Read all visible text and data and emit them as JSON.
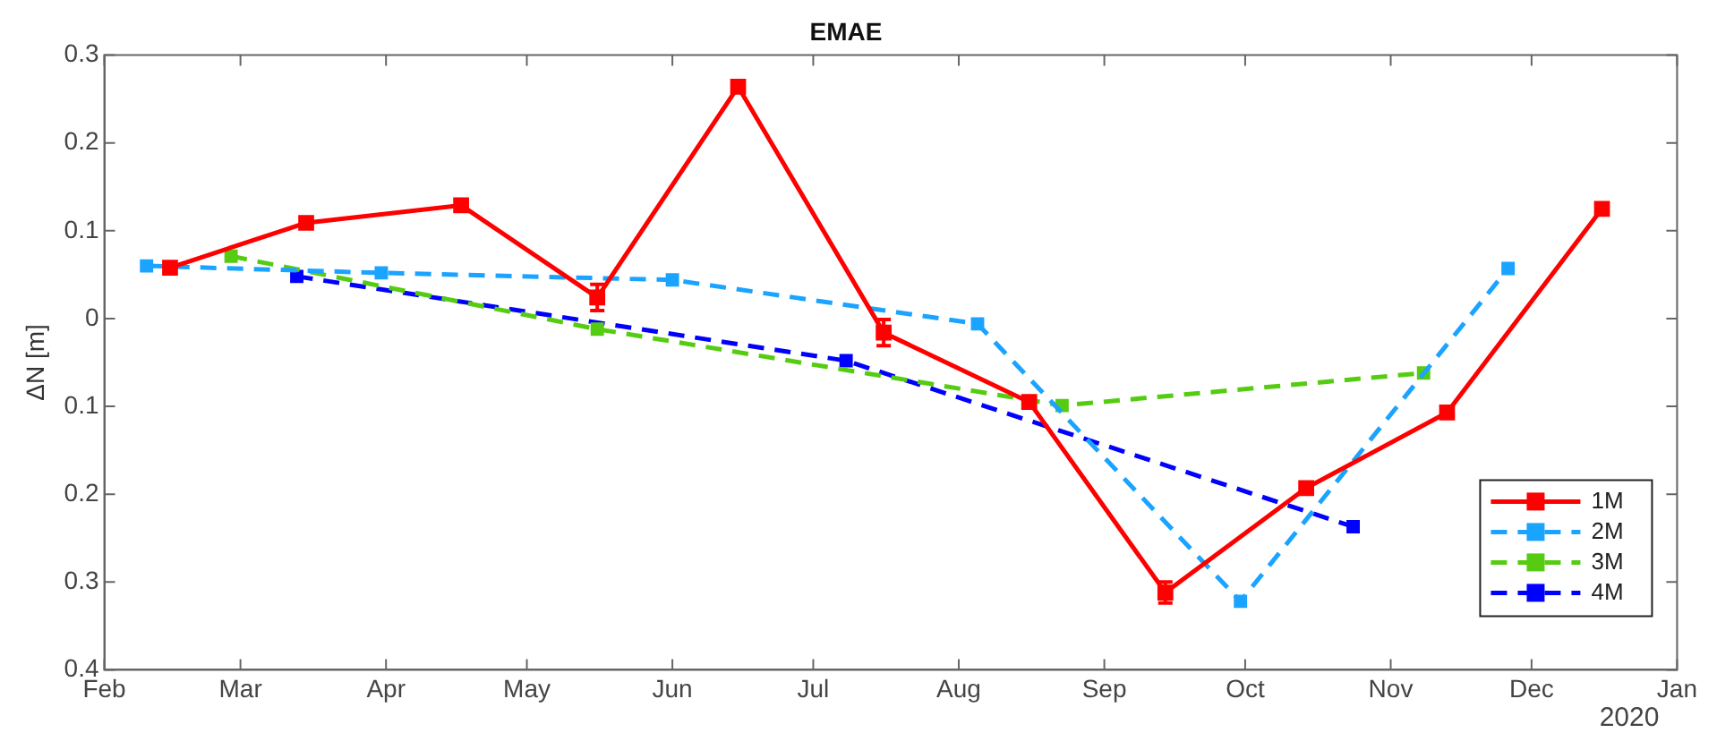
{
  "chart_data": {
    "type": "line",
    "title": "EMAE",
    "ylabel": "ΔN [m]",
    "xlim": [
      "2020-02-01",
      "2021-01-01"
    ],
    "xticks": [
      {
        "value": "2020-02-01",
        "label": "Feb"
      },
      {
        "value": "2020-03-01",
        "label": "Mar"
      },
      {
        "value": "2020-04-01",
        "label": "Apr"
      },
      {
        "value": "2020-05-01",
        "label": "May"
      },
      {
        "value": "2020-06-01",
        "label": "Jun"
      },
      {
        "value": "2020-07-01",
        "label": "Jul"
      },
      {
        "value": "2020-08-01",
        "label": "Aug"
      },
      {
        "value": "2020-09-01",
        "label": "Sep"
      },
      {
        "value": "2020-10-01",
        "label": "Oct"
      },
      {
        "value": "2020-11-01",
        "label": "Nov"
      },
      {
        "value": "2020-12-01",
        "label": "Dec"
      },
      {
        "value": "2021-01-01",
        "label": "Jan"
      }
    ],
    "ylim": [
      -0.4,
      0.3
    ],
    "yticks": [
      {
        "value": -0.4,
        "label": "0.4"
      },
      {
        "value": -0.3,
        "label": "0.3"
      },
      {
        "value": -0.2,
        "label": "0.2"
      },
      {
        "value": -0.1,
        "label": "0.1"
      },
      0,
      0.1,
      0.2,
      0.3
    ],
    "series": [
      {
        "name": "1M",
        "color": "#ff0000",
        "line_style": "solid",
        "x": [
          "2020-02-15",
          "2020-03-15",
          "2020-04-17",
          "2020-05-16",
          "2020-06-15",
          "2020-07-16",
          "2020-08-16",
          "2020-09-14",
          "2020-10-14",
          "2020-11-13",
          "2020-12-16"
        ],
        "values": [
          0.058,
          0.109,
          0.129,
          0.024,
          0.264,
          -0.016,
          -0.095,
          -0.312,
          -0.193,
          -0.107,
          0.125
        ],
        "errors": [
          null,
          null,
          null,
          0.015,
          null,
          0.015,
          null,
          0.012,
          null,
          null,
          null
        ]
      },
      {
        "name": "2M",
        "color": "#1aa3ff",
        "line_style": "dashed",
        "x": [
          "2020-02-10",
          "2020-03-31",
          "2020-06-01",
          "2020-08-05",
          "2020-09-30",
          "2020-11-26"
        ],
        "values": [
          0.06,
          0.052,
          0.044,
          -0.006,
          -0.322,
          0.057
        ]
      },
      {
        "name": "3M",
        "color": "#55cc11",
        "line_style": "dashed",
        "x": [
          "2020-02-28",
          "2020-05-16",
          "2020-08-23",
          "2020-11-08"
        ],
        "values": [
          0.071,
          -0.012,
          -0.099,
          -0.062
        ]
      },
      {
        "name": "4M",
        "color": "#0000ff",
        "line_style": "dashed",
        "x": [
          "2020-03-13",
          "2020-07-08",
          "2020-10-24"
        ],
        "values": [
          0.048,
          -0.048,
          -0.237
        ]
      }
    ],
    "marker": "square",
    "grid": false,
    "legend": "bottom right",
    "annotations": [
      "2020"
    ]
  }
}
